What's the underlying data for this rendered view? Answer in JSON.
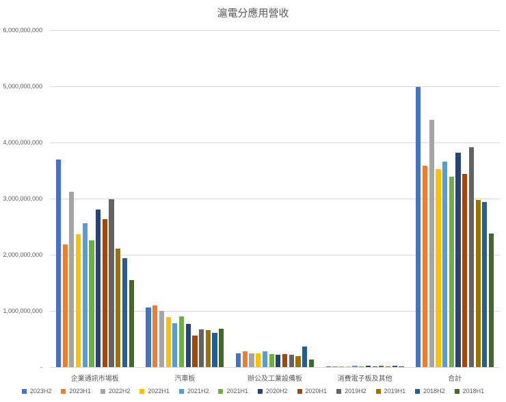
{
  "chart_data": {
    "type": "bar",
    "title": "滬電分應用營收",
    "xlabel": "",
    "ylabel": "",
    "ylim": [
      0,
      6000000000
    ],
    "yticks": [
      "-",
      "1,000,000,000",
      "2,000,000,000",
      "3,000,000,000",
      "4,000,000,000",
      "5,000,000,000",
      "6,000,000,000"
    ],
    "grid": true,
    "legend_position": "bottom",
    "categories": [
      "企業通訊市場板",
      "汽車板",
      "辦公及工業設備板",
      "消費電子板及其他",
      "合計"
    ],
    "series": [
      {
        "name": "2023H2",
        "color": "#4472C4",
        "values": [
          3700000000,
          1060000000,
          240000000,
          10000000,
          4990000000
        ]
      },
      {
        "name": "2023H1",
        "color": "#ED7D31",
        "values": [
          2180000000,
          1100000000,
          280000000,
          10000000,
          3580000000
        ]
      },
      {
        "name": "2022H2",
        "color": "#A5A5A5",
        "values": [
          3120000000,
          1000000000,
          240000000,
          15000000,
          4400000000
        ]
      },
      {
        "name": "2022H1",
        "color": "#FFC000",
        "values": [
          2370000000,
          890000000,
          250000000,
          15000000,
          3530000000
        ]
      },
      {
        "name": "2021H2",
        "color": "#5B9BD5",
        "values": [
          2560000000,
          780000000,
          280000000,
          20000000,
          3660000000
        ]
      },
      {
        "name": "2021H1",
        "color": "#70AD47",
        "values": [
          2260000000,
          900000000,
          230000000,
          15000000,
          3390000000
        ]
      },
      {
        "name": "2020H2",
        "color": "#264478",
        "values": [
          2800000000,
          770000000,
          220000000,
          20000000,
          3820000000
        ]
      },
      {
        "name": "2020H1",
        "color": "#9E480E",
        "values": [
          2630000000,
          560000000,
          230000000,
          15000000,
          3440000000
        ]
      },
      {
        "name": "2019H2",
        "color": "#636363",
        "values": [
          2990000000,
          670000000,
          220000000,
          20000000,
          3910000000
        ]
      },
      {
        "name": "2019H1",
        "color": "#997300",
        "values": [
          2110000000,
          660000000,
          190000000,
          15000000,
          2980000000
        ]
      },
      {
        "name": "2018H2",
        "color": "#255E91",
        "values": [
          1940000000,
          610000000,
          370000000,
          20000000,
          2940000000
        ]
      },
      {
        "name": "2018H1",
        "color": "#43682B",
        "values": [
          1550000000,
          680000000,
          140000000,
          10000000,
          2380000000
        ]
      }
    ]
  }
}
